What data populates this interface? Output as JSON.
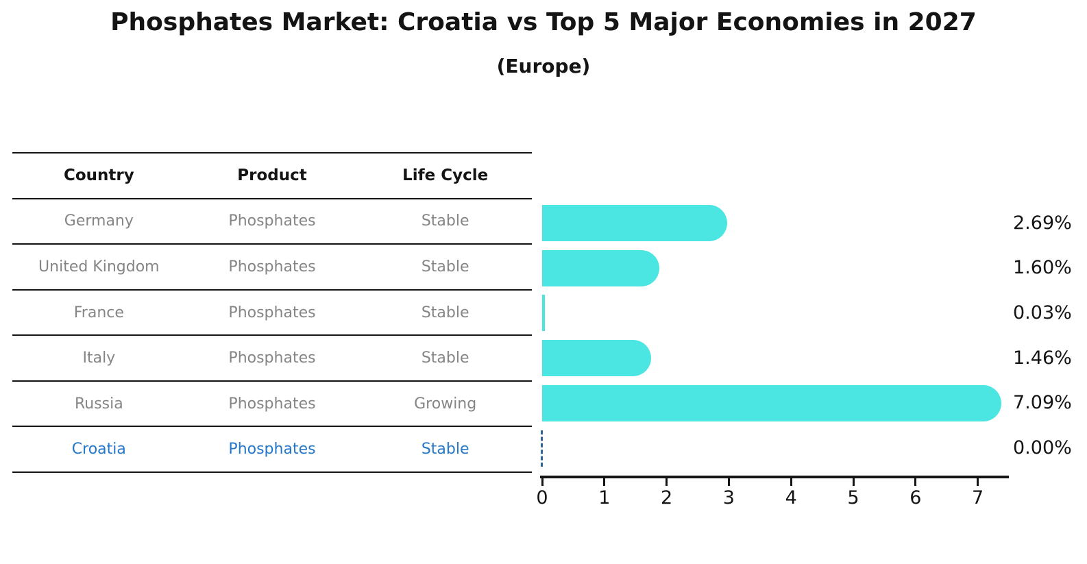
{
  "title": "Phosphates Market: Croatia vs Top 5 Major Economies in 2027",
  "subtitle": "(Europe)",
  "table": {
    "headers": [
      "Country",
      "Product",
      "Life Cycle"
    ],
    "rows": [
      {
        "country": "Germany",
        "product": "Phosphates",
        "life_cycle": "Stable",
        "highlight": false
      },
      {
        "country": "United Kingdom",
        "product": "Phosphates",
        "life_cycle": "Stable",
        "highlight": false
      },
      {
        "country": "France",
        "product": "Phosphates",
        "life_cycle": "Stable",
        "highlight": false
      },
      {
        "country": "Italy",
        "product": "Phosphates",
        "life_cycle": "Stable",
        "highlight": false
      },
      {
        "country": "Russia",
        "product": "Phosphates",
        "life_cycle": "Growing",
        "highlight": false
      },
      {
        "country": "Croatia",
        "product": "Phosphates",
        "life_cycle": "Stable",
        "highlight": true
      }
    ]
  },
  "chart_data": {
    "type": "bar",
    "orientation": "horizontal",
    "title": "Phosphates Market: Croatia vs Top 5 Major Economies in 2027",
    "subtitle": "(Europe)",
    "categories": [
      "Germany",
      "United Kingdom",
      "France",
      "Italy",
      "Russia",
      "Croatia"
    ],
    "values": [
      2.69,
      1.6,
      0.03,
      1.46,
      7.09,
      0.0
    ],
    "value_labels": [
      "2.69%",
      "1.60%",
      "0.03%",
      "1.46%",
      "7.09%",
      "0.00%"
    ],
    "xlabel": "",
    "ylabel": "",
    "xlim": [
      0,
      7.5
    ],
    "xticks": [
      0,
      1,
      2,
      3,
      4,
      5,
      6,
      7
    ],
    "grid": false,
    "legend": "none",
    "zero_value_style": "dashed-outline"
  },
  "colors": {
    "bar_cyan": "#4ce6e2",
    "highlight_blue": "#2478cb",
    "zero_dash_blue": "#2f6596",
    "cell_gray": "#858585",
    "ink_black": "#141414"
  }
}
